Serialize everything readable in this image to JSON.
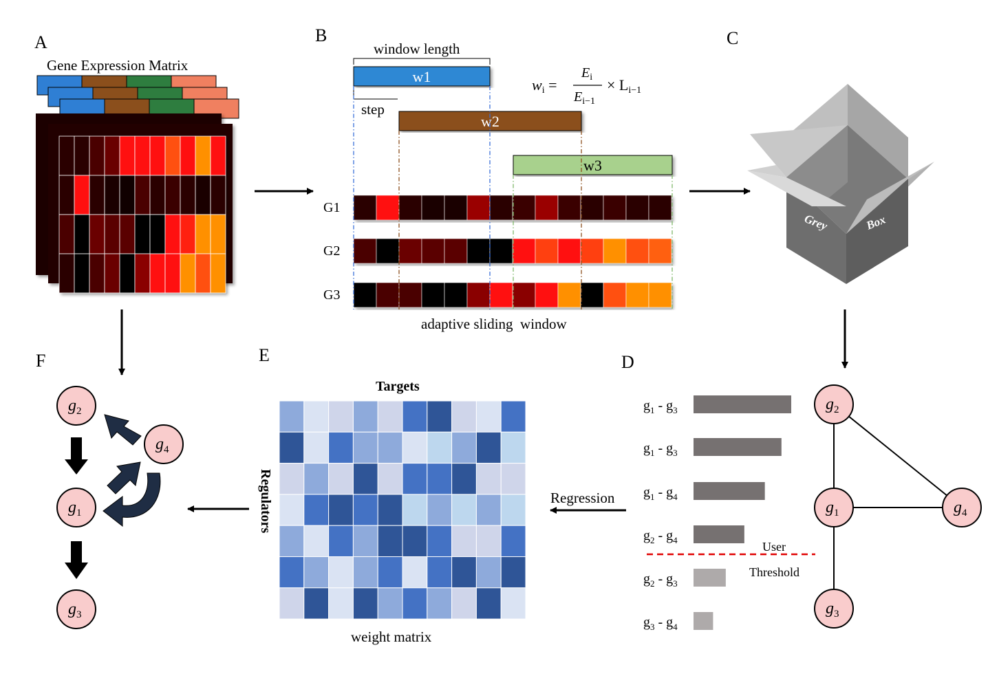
{
  "panels": {
    "A": "A",
    "B": "B",
    "C": "C",
    "D": "D",
    "E": "E",
    "F": "F"
  },
  "panel_a": {
    "title": "Gene Expression Matrix",
    "header_colors": [
      "#2f7fd4",
      "#8b4f1c",
      "#2e7d3f",
      "#f08060"
    ],
    "front_matrix": [
      [
        "#2a0000",
        "#2a0000",
        "#4a0000",
        "#6a0000",
        "#ff1010",
        "#ff1010",
        "#ff1010",
        "#ff5010",
        "#ff1010",
        "#ff9000",
        "#ff1010"
      ],
      [
        "#2a0000",
        "#ff1010",
        "#2a0000",
        "#1a0000",
        "#100000",
        "#4a0000",
        "#2a0000",
        "#3a0000",
        "#2a0000",
        "#1a0000",
        "#2a0000"
      ],
      [
        "#4a0000",
        "#000000",
        "#6a0000",
        "#5a0000",
        "#5a0000",
        "#000000",
        "#000000",
        "#ff1010",
        "#ff2010",
        "#ff9000",
        "#ff9000"
      ],
      [
        "#2a0000",
        "#000000",
        "#4a0000",
        "#6a0000",
        "#000000",
        "#8a0000",
        "#ff1010",
        "#ff1010",
        "#ff9000",
        "#ff5010",
        "#ff9000"
      ]
    ]
  },
  "panel_b": {
    "window_length": "window length",
    "step": "step",
    "windows": [
      "w1",
      "w2",
      "w3"
    ],
    "window_colors": [
      "#2f88d4",
      "#8b4f1c",
      "#a8d18d"
    ],
    "formula": {
      "lhs": "w",
      "lhs_sub": "i",
      "num": "E",
      "num_sub": "i",
      "den": "E",
      "den_sub": "i−1",
      "times": "× L",
      "l_sub": "i−1"
    },
    "genes": [
      "G1",
      "G2",
      "G3"
    ],
    "gene_rows": [
      [
        "#2a0000",
        "#ff1010",
        "#2a0000",
        "#1a0000",
        "#1a0000",
        "#9a0000",
        "#2a0000",
        "#3a0000",
        "#9a0000",
        "#3a0000",
        "#2a0000",
        "#3a0000",
        "#2a0000",
        "#2a0000"
      ],
      [
        "#4a0000",
        "#000000",
        "#6a0000",
        "#5a0000",
        "#5a0000",
        "#000000",
        "#000000",
        "#ff1010",
        "#ff4010",
        "#ff1010",
        "#ff4010",
        "#ff9000",
        "#ff5010",
        "#ff6010"
      ],
      [
        "#000000",
        "#4a0000",
        "#4a0000",
        "#000000",
        "#000000",
        "#8a0000",
        "#ff1010",
        "#8a0000",
        "#ff1010",
        "#ff9000",
        "#000000",
        "#ff5010",
        "#ff9000",
        "#ff9000"
      ]
    ],
    "caption": "adaptive sliding  window"
  },
  "panel_c": {
    "box_left": "Grey",
    "box_right": "Box"
  },
  "panel_d": {
    "edges": [
      {
        "a": "g",
        "as": "1",
        "b": "g",
        "bs": "3",
        "value": 1.0,
        "color": "#767171"
      },
      {
        "a": "g",
        "as": "1",
        "b": "g",
        "bs": "3",
        "value": 0.9,
        "color": "#767171"
      },
      {
        "a": "g",
        "as": "1",
        "b": "g",
        "bs": "4",
        "value": 0.73,
        "color": "#767171"
      },
      {
        "a": "g",
        "as": "2",
        "b": "g",
        "bs": "4",
        "value": 0.52,
        "color": "#767171"
      },
      {
        "a": "g",
        "as": "2",
        "b": "g",
        "bs": "3",
        "value": 0.33,
        "color": "#aeaaaa"
      },
      {
        "a": "g",
        "as": "3",
        "b": "g",
        "bs": "4",
        "value": 0.2,
        "color": "#aeaaaa"
      }
    ],
    "user": "User",
    "threshold": "Threshold",
    "network_nodes": [
      {
        "g": "g",
        "s": "2"
      },
      {
        "g": "g",
        "s": "1"
      },
      {
        "g": "g",
        "s": "4"
      },
      {
        "g": "g",
        "s": "3"
      }
    ]
  },
  "panel_e": {
    "targets": "Targets",
    "regulators": "Regulators",
    "caption": "weight matrix",
    "regression": "Regression",
    "matrix": [
      [
        "#8eaadb",
        "#dae3f3",
        "#cfd5ea",
        "#8eaadb",
        "#cfd5ea",
        "#4472c4",
        "#2f5597",
        "#cfd5ea",
        "#dae3f3",
        "#4472c4"
      ],
      [
        "#2f5597",
        "#dae3f3",
        "#4472c4",
        "#8eaadb",
        "#8eaadb",
        "#dae3f3",
        "#bdd7ee",
        "#8eaadb",
        "#2f5597",
        "#bdd7ee"
      ],
      [
        "#cfd5ea",
        "#8eaadb",
        "#cfd5ea",
        "#2f5597",
        "#cfd5ea",
        "#4472c4",
        "#4472c4",
        "#2f5597",
        "#cfd5ea",
        "#cfd5ea"
      ],
      [
        "#dae3f3",
        "#4472c4",
        "#2f5597",
        "#4472c4",
        "#2f5597",
        "#bdd7ee",
        "#8eaadb",
        "#bdd7ee",
        "#8eaadb",
        "#bdd7ee"
      ],
      [
        "#8eaadb",
        "#dae3f3",
        "#4472c4",
        "#8eaadb",
        "#2f5597",
        "#2f5597",
        "#4472c4",
        "#cfd5ea",
        "#cfd5ea",
        "#4472c4"
      ],
      [
        "#4472c4",
        "#8eaadb",
        "#dae3f3",
        "#8eaadb",
        "#4472c4",
        "#dae3f3",
        "#4472c4",
        "#2f5597",
        "#8eaadb",
        "#2f5597"
      ],
      [
        "#cfd5ea",
        "#2f5597",
        "#dae3f3",
        "#2f5597",
        "#8eaadb",
        "#4472c4",
        "#8eaadb",
        "#cfd5ea",
        "#2f5597",
        "#dae3f3"
      ]
    ]
  },
  "panel_f": {
    "nodes": [
      {
        "g": "g",
        "s": "2"
      },
      {
        "g": "g",
        "s": "4"
      },
      {
        "g": "g",
        "s": "1"
      },
      {
        "g": "g",
        "s": "3"
      }
    ]
  }
}
